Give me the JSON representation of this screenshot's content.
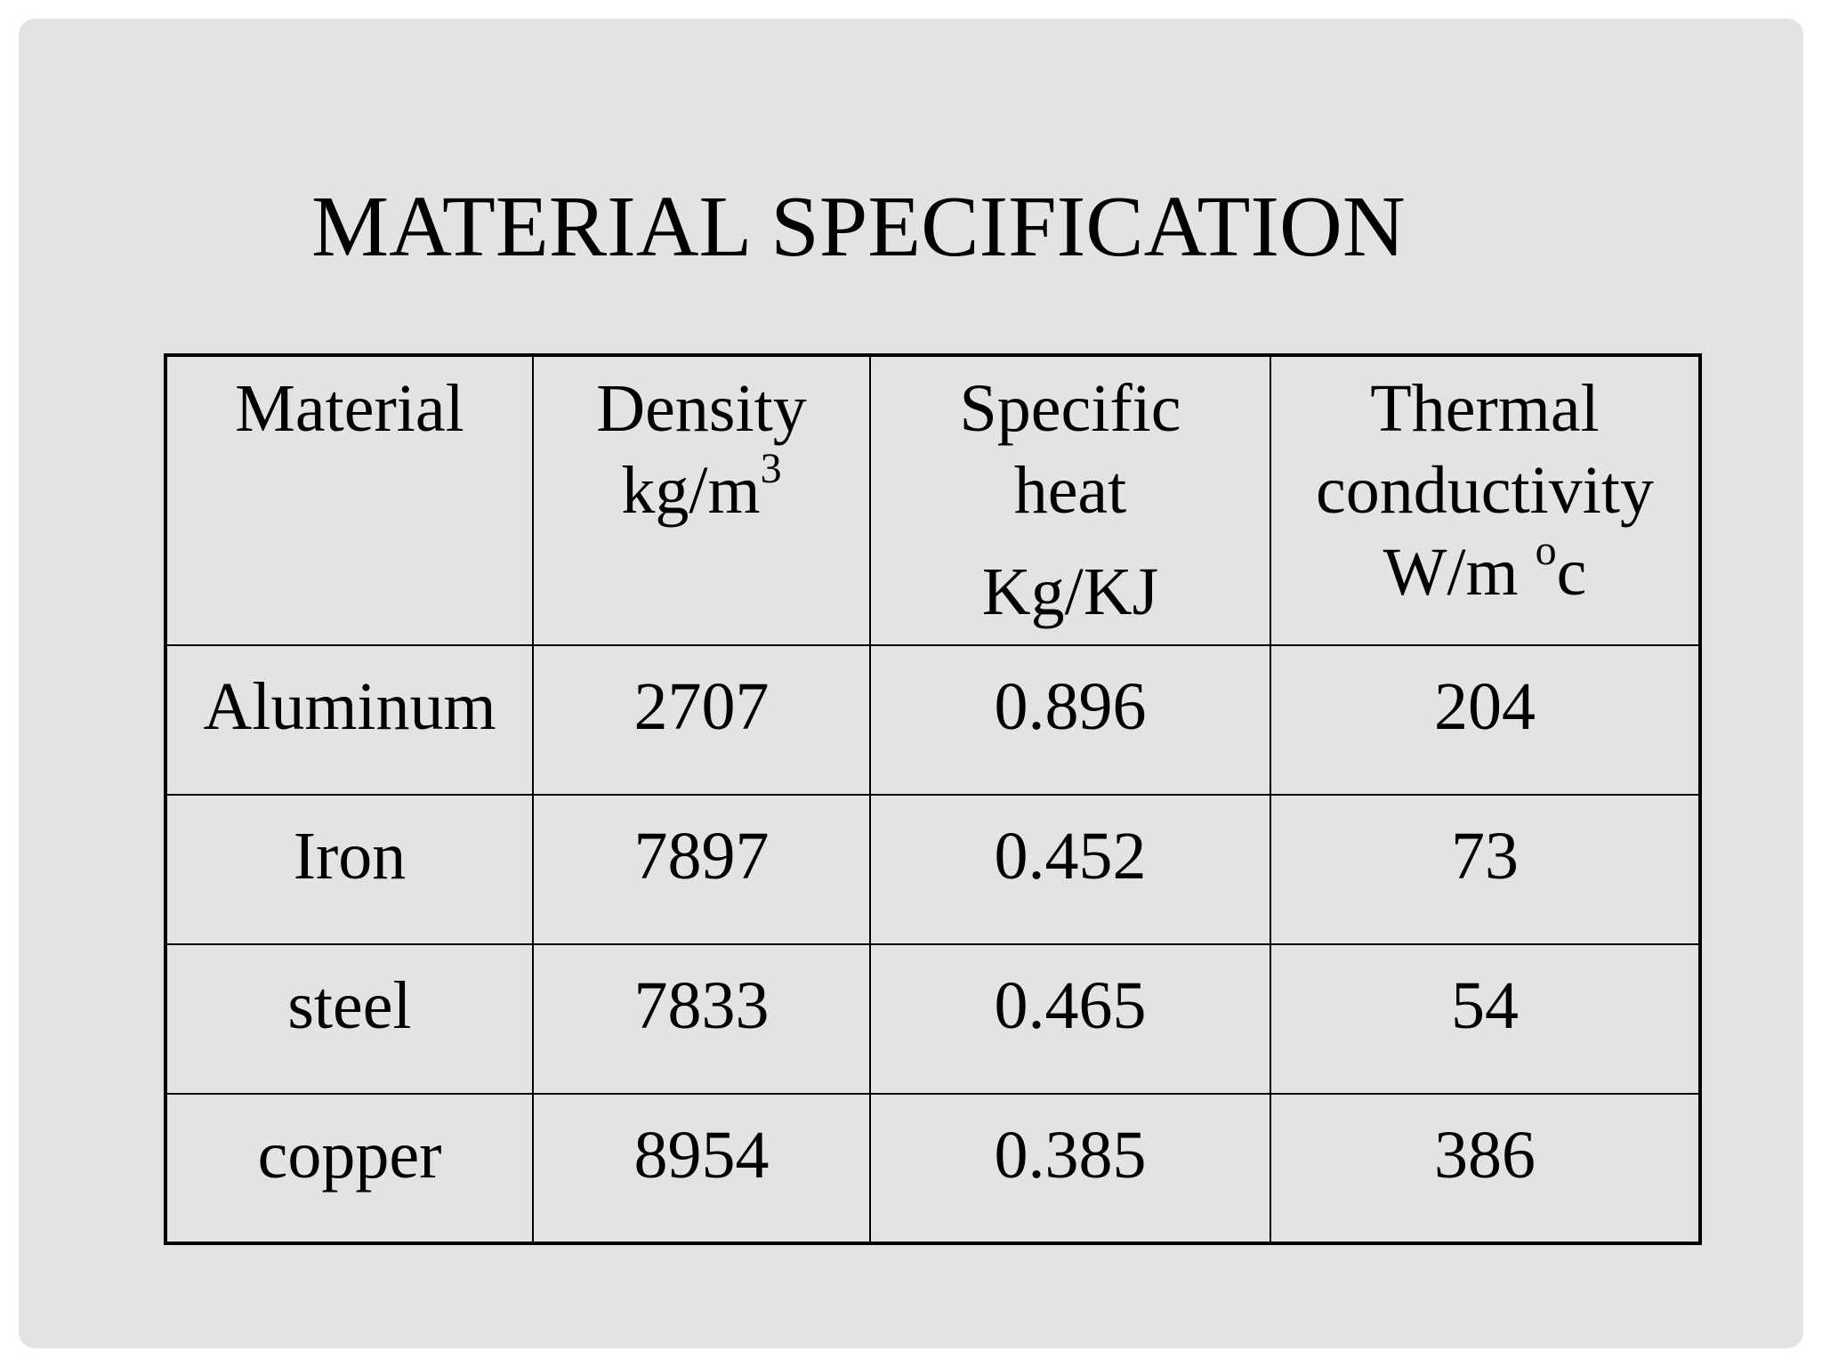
{
  "header": {
    "title": "MATERIAL SPECIFICATION"
  },
  "table": {
    "columns": [
      {
        "lines": [
          "Material"
        ]
      },
      {
        "lines": [
          "Density",
          "kg/m"
        ],
        "sup": "3"
      },
      {
        "lines": [
          "Specific",
          "heat",
          "Kg/KJ"
        ]
      },
      {
        "lines": [
          "Thermal",
          "conductivity",
          "W/m "
        ],
        "sup": "o",
        "tail": "c"
      }
    ],
    "rows": [
      [
        "Aluminum",
        2707,
        0.896,
        204
      ],
      [
        "Iron",
        7897,
        0.452,
        73
      ],
      [
        "steel",
        7833,
        0.465,
        54
      ],
      [
        "copper",
        8954,
        0.385,
        386
      ]
    ]
  }
}
